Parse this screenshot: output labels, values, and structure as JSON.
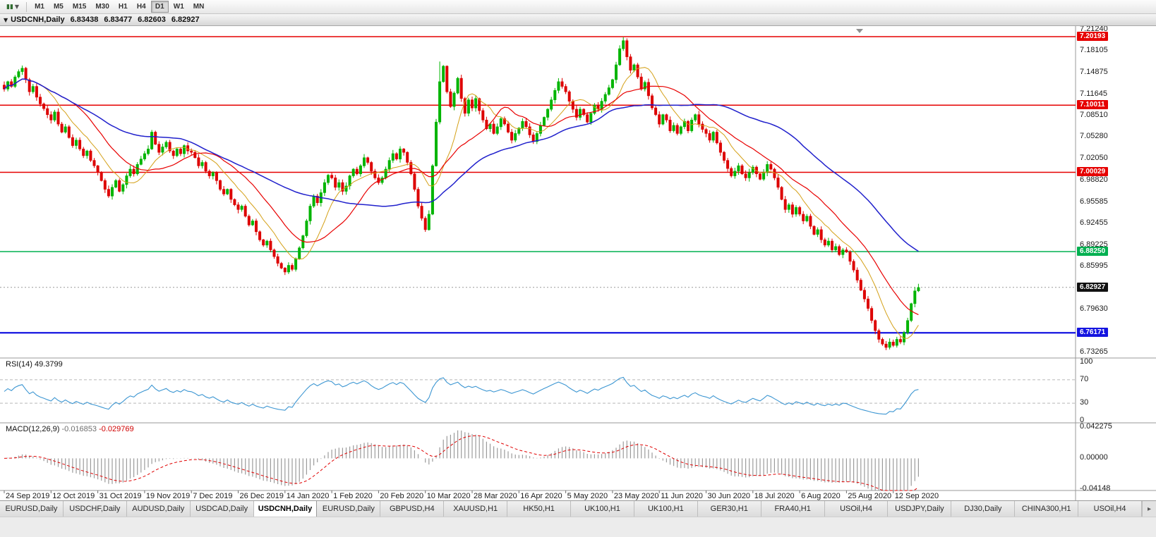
{
  "toolbar": {
    "timeframes": [
      "M1",
      "M5",
      "M15",
      "M30",
      "H1",
      "H4",
      "D1",
      "W1",
      "MN"
    ],
    "active_timeframe": "D1"
  },
  "title_bar": {
    "symbol": "USDCNH,Daily",
    "open": "6.83438",
    "high": "6.83477",
    "low": "6.82603",
    "close": "6.82927"
  },
  "chart_data": {
    "type": "candlestick",
    "symbol": "USDCNH",
    "timeframe": "Daily",
    "bars_per_label": 13,
    "x_labels": [
      "24 Sep 2019",
      "12 Oct 2019",
      "31 Oct 2019",
      "19 Nov 2019",
      "7 Dec 2019",
      "26 Dec 2019",
      "14 Jan 2020",
      "1 Feb 2020",
      "20 Feb 2020",
      "10 Mar 2020",
      "28 Mar 2020",
      "16 Apr 2020",
      "5 May 2020",
      "23 May 2020",
      "11 Jun 2020",
      "30 Jun 2020",
      "18 Jul 2020",
      "6 Aug 2020",
      "25 Aug 2020",
      "12 Sep 2020"
    ],
    "closes": [
      7.124,
      7.135,
      7.128,
      7.142,
      7.15,
      7.155,
      7.138,
      7.12,
      7.128,
      7.112,
      7.102,
      7.095,
      7.086,
      7.078,
      7.09,
      7.072,
      7.06,
      7.068,
      7.052,
      7.04,
      7.048,
      7.035,
      7.025,
      7.032,
      7.018,
      7.01,
      7.0,
      6.988,
      6.975,
      6.965,
      6.978,
      6.988,
      6.972,
      6.982,
      6.995,
      7.005,
      6.998,
      7.012,
      7.02,
      7.028,
      7.035,
      7.06,
      7.042,
      7.03,
      7.038,
      7.045,
      7.032,
      7.025,
      7.035,
      7.028,
      7.04,
      7.032,
      7.03,
      7.022,
      7.01,
      7.015,
      7.002,
      6.995,
      7.0,
      6.988,
      6.975,
      6.968,
      6.975,
      6.96,
      6.952,
      6.945,
      6.95,
      6.935,
      6.922,
      6.928,
      6.912,
      6.9,
      6.892,
      6.898,
      6.885,
      6.875,
      6.865,
      6.858,
      6.852,
      6.862,
      6.856,
      6.872,
      6.888,
      6.906,
      6.928,
      6.95,
      6.965,
      6.955,
      6.97,
      6.985,
      6.996,
      6.992,
      6.978,
      6.985,
      6.972,
      6.98,
      6.995,
      7.005,
      6.998,
      7.01,
      7.022,
      7.015,
      7.002,
      6.992,
      6.985,
      6.992,
      7.005,
      7.018,
      7.028,
      7.02,
      7.035,
      7.03,
      7.015,
      6.998,
      6.975,
      6.95,
      6.932,
      6.915,
      6.938,
      7.01,
      7.075,
      7.135,
      7.158,
      7.12,
      7.098,
      7.118,
      7.14,
      7.11,
      7.088,
      7.108,
      7.096,
      7.11,
      7.092,
      7.078,
      7.065,
      7.072,
      7.058,
      7.068,
      7.08,
      7.072,
      7.06,
      7.048,
      7.058,
      7.066,
      7.076,
      7.068,
      7.056,
      7.046,
      7.058,
      7.07,
      7.082,
      7.094,
      7.108,
      7.122,
      7.135,
      7.128,
      7.12,
      7.106,
      7.094,
      7.082,
      7.094,
      7.086,
      7.075,
      7.088,
      7.1,
      7.094,
      7.106,
      7.116,
      7.126,
      7.138,
      7.16,
      7.184,
      7.196,
      7.172,
      7.152,
      7.16,
      7.142,
      7.124,
      7.134,
      7.114,
      7.096,
      7.086,
      7.072,
      7.086,
      7.078,
      7.062,
      7.07,
      7.058,
      7.068,
      7.076,
      7.062,
      7.078,
      7.086,
      7.072,
      7.064,
      7.058,
      7.048,
      7.06,
      7.044,
      7.03,
      7.018,
      7.006,
      6.995,
      7.002,
      7.01,
      6.998,
      6.992,
      7.0,
      7.008,
      6.998,
      6.99,
      7.0,
      7.012,
      7.005,
      6.992,
      6.978,
      6.96,
      6.945,
      6.952,
      6.938,
      6.948,
      6.938,
      6.928,
      6.935,
      6.92,
      6.908,
      6.915,
      6.9,
      6.892,
      6.898,
      6.885,
      6.89,
      6.878,
      6.885,
      6.882,
      6.868,
      6.855,
      6.84,
      6.825,
      6.812,
      6.798,
      6.78,
      6.765,
      6.752,
      6.745,
      6.74,
      6.748,
      6.743,
      6.752,
      6.748,
      6.762,
      6.78,
      6.805,
      6.824,
      6.829
    ],
    "candle_colors": {
      "up": "#00b400",
      "down": "#dd0000"
    },
    "moving_averages": [
      {
        "period": 10,
        "color": "#d4a017",
        "width": 1
      },
      {
        "period": 20,
        "color": "#e80000",
        "width": 1.2
      },
      {
        "period": 50,
        "color": "#2020cc",
        "width": 1.5
      }
    ],
    "y_axis": {
      "min": 6.73265,
      "max": 7.2124,
      "ticks": [
        "7.21240",
        "7.18105",
        "7.14875",
        "7.11645",
        "7.08510",
        "7.05280",
        "7.02050",
        "6.98820",
        "6.95585",
        "6.92455",
        "6.89225",
        "6.85995",
        "6.79630",
        "6.73265"
      ]
    },
    "hlines": [
      {
        "price": 7.20193,
        "label": "7.20193",
        "color": "#e60000",
        "width": 1.5
      },
      {
        "price": 7.10011,
        "label": "7.10011",
        "color": "#e60000",
        "width": 1.5
      },
      {
        "price": 7.00029,
        "label": "7.00029",
        "color": "#e60000",
        "width": 1.5
      },
      {
        "price": 6.8825,
        "label": "6.88250",
        "color": "#00b050",
        "width": 1.5
      },
      {
        "price": 6.76171,
        "label": "6.76171",
        "color": "#1414e0",
        "width": 2.2
      }
    ],
    "current_price": {
      "value": 6.82927,
      "label": "6.82927",
      "badge_color": "#111111"
    },
    "indicators": [
      {
        "name": "RSI",
        "name_label": "RSI(14)",
        "value_label": "49.3799",
        "period": 14,
        "levels": [
          100,
          70,
          30,
          0
        ],
        "color": "#3c96d2"
      },
      {
        "name": "MACD",
        "name_label": "MACD(12,26,9)",
        "main_value": "-0.016853",
        "signal_value": "-0.029769",
        "params": [
          12,
          26,
          9
        ],
        "range": [
          -0.04148,
          0.042275
        ],
        "axis": [
          {
            "value": 0.042275,
            "label": "0.042275"
          },
          {
            "value": 0,
            "label": "0.00000"
          },
          {
            "value": -0.04148,
            "label": "-0.04148"
          }
        ],
        "histogram_color": "#9b9b9b",
        "signal_color": "#e00000"
      }
    ]
  },
  "tabs": {
    "active_index": 4,
    "items": [
      {
        "label": "EURUSD,Daily"
      },
      {
        "label": "USDCHF,Daily"
      },
      {
        "label": "AUDUSD,Daily"
      },
      {
        "label": "USDCAD,Daily"
      },
      {
        "label": "USDCNH,Daily"
      },
      {
        "label": "EURUSD,Daily"
      },
      {
        "label": "GBPUSD,H4"
      },
      {
        "label": "XAUUSD,H1"
      },
      {
        "label": "HK50,H1"
      },
      {
        "label": "UK100,H1"
      },
      {
        "label": "UK100,H1"
      },
      {
        "label": "GER30,H1"
      },
      {
        "label": "FRA40,H1"
      },
      {
        "label": "USOil,H4"
      },
      {
        "label": "USDJPY,Daily"
      },
      {
        "label": "DJ30,Daily"
      },
      {
        "label": "CHINA300,H1"
      },
      {
        "label": "USOil,H4"
      }
    ],
    "scroll_right_glyph": "▸"
  }
}
